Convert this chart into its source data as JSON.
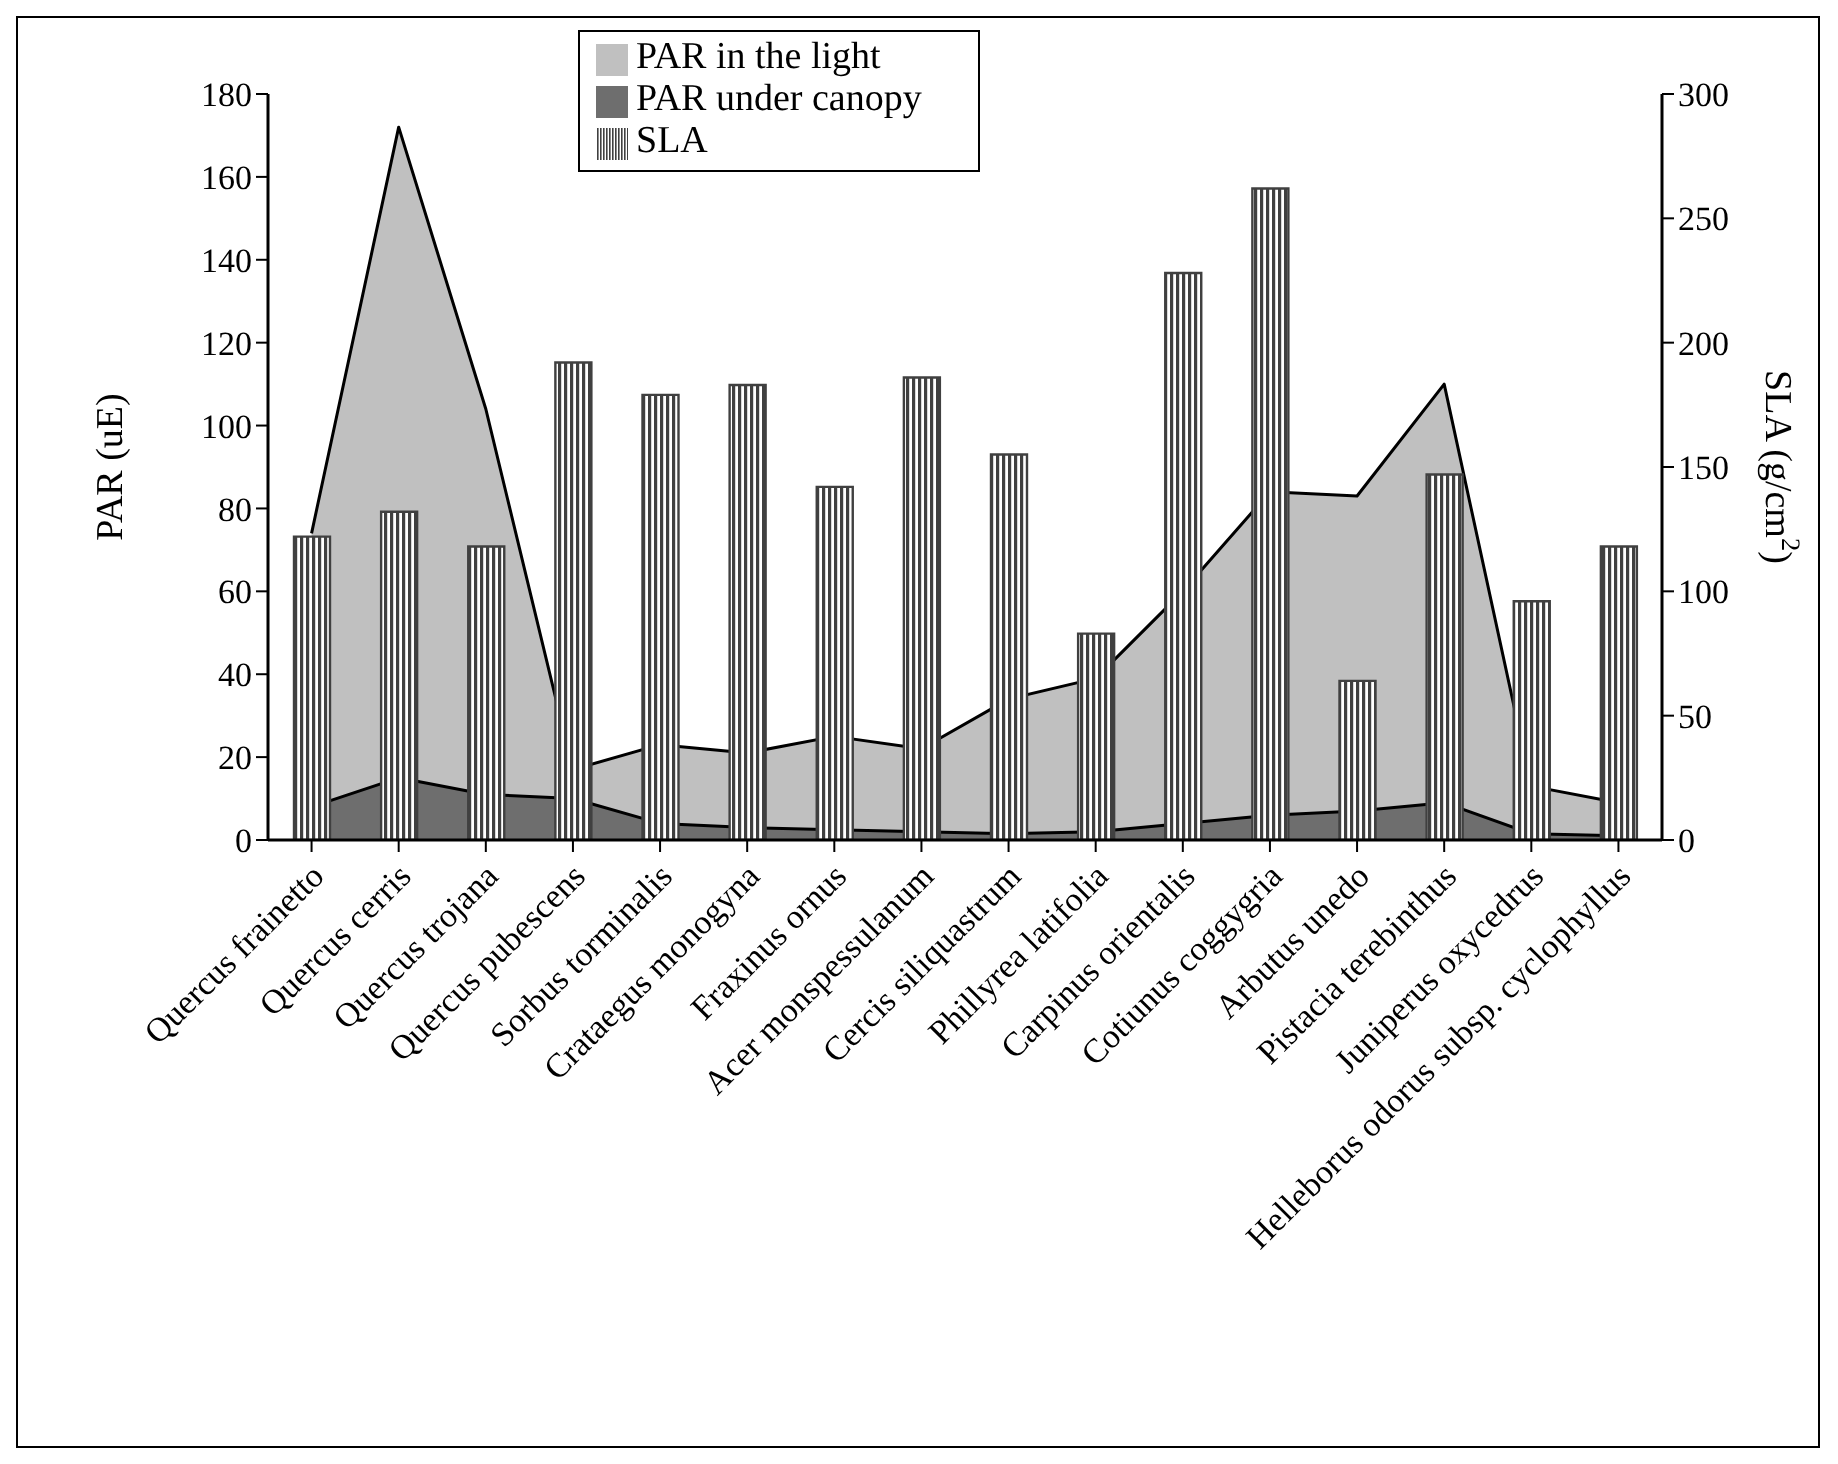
{
  "chart_data": {
    "type": "area",
    "categories": [
      "Quercus frainetto",
      "Quercus cerris",
      "Quercus trojana",
      "Quercus pubescens",
      "Sorbus torminalis",
      "Crataegus monogyna",
      "Fraxinus ornus",
      "Acer monspessulanum",
      "Cercis siliquastrum",
      "Phillyrea latifolia",
      "Carpinus orientalis",
      "Cotiunus coggygria",
      "Arbutus unedo",
      "Pistacia terebinthus",
      "Juniperus oxycedrus",
      "Helleborus odorus subsp. cyclophyllus"
    ],
    "series": [
      {
        "name": "PAR in the light",
        "color": "#c0c0c0",
        "values": [
          74,
          172,
          104,
          17,
          23,
          21,
          25,
          22,
          34,
          39,
          60,
          84,
          83,
          110,
          13,
          9
        ]
      },
      {
        "name": "PAR under canopy",
        "color": "#6e6e6e",
        "values": [
          8,
          15,
          11,
          10,
          4,
          3,
          2.5,
          2,
          1.5,
          2,
          4,
          6,
          7,
          9,
          1.5,
          1
        ]
      },
      {
        "name": "SLA",
        "type": "bar",
        "axis": "y2",
        "color": "#404040",
        "values": [
          122,
          132,
          118,
          192,
          179,
          183,
          142,
          186,
          155,
          83,
          228,
          262,
          64,
          147,
          96,
          118
        ]
      }
    ],
    "ylabel": "PAR (uE)",
    "y2label": "SLA (g/cm$^{2}$)",
    "ylim": [
      0,
      180
    ],
    "yticks": [
      0,
      20,
      40,
      60,
      80,
      100,
      120,
      140,
      160,
      180
    ],
    "y2lim": [
      0,
      300
    ],
    "y2ticks": [
      0,
      50,
      100,
      150,
      200,
      250,
      300
    ],
    "legend": "top",
    "grid": false
  }
}
